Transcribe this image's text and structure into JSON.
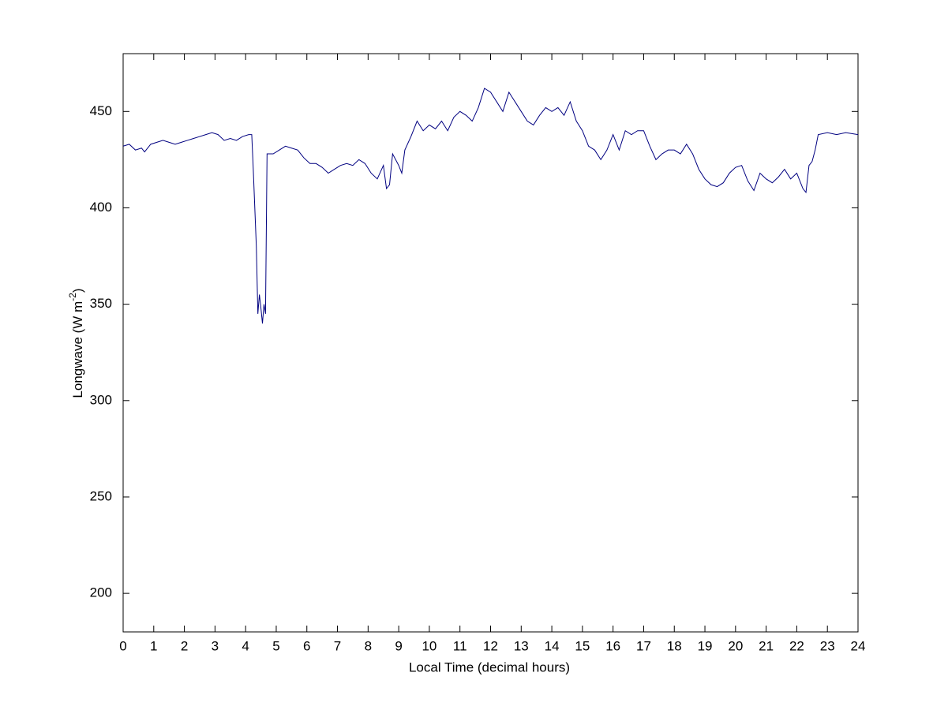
{
  "chart_data": {
    "type": "line",
    "xlabel": "Local Time (decimal hours)",
    "ylabel": "Longwave (W m",
    "ylabel_sup": "-2",
    "ylabel_end": ")",
    "xlim": [
      0,
      24
    ],
    "xticks": [
      0,
      1,
      2,
      3,
      4,
      5,
      6,
      7,
      8,
      9,
      10,
      11,
      12,
      13,
      14,
      15,
      16,
      17,
      18,
      19,
      20,
      21,
      22,
      23,
      24
    ],
    "ylim": [
      180,
      480
    ],
    "yticks": [
      200,
      250,
      300,
      350,
      400,
      450
    ],
    "grid": false,
    "series": [
      {
        "color": "#000080",
        "x": [
          0,
          0.2,
          0.4,
          0.6,
          0.7,
          0.9,
          1.1,
          1.3,
          1.5,
          1.7,
          1.9,
          2.1,
          2.3,
          2.5,
          2.7,
          2.9,
          3.1,
          3.3,
          3.5,
          3.7,
          3.9,
          4.1,
          4.2,
          4.25,
          4.35,
          4.4,
          4.45,
          4.5,
          4.55,
          4.6,
          4.65,
          4.7,
          4.9,
          5.1,
          5.3,
          5.5,
          5.7,
          5.9,
          6.1,
          6.3,
          6.5,
          6.7,
          6.9,
          7.1,
          7.3,
          7.5,
          7.7,
          7.9,
          8.1,
          8.3,
          8.5,
          8.6,
          8.7,
          8.8,
          9.0,
          9.1,
          9.2,
          9.4,
          9.6,
          9.8,
          10.0,
          10.2,
          10.4,
          10.6,
          10.8,
          11.0,
          11.2,
          11.4,
          11.6,
          11.8,
          12.0,
          12.2,
          12.4,
          12.6,
          12.8,
          13.0,
          13.2,
          13.4,
          13.6,
          13.8,
          14.0,
          14.2,
          14.4,
          14.6,
          14.8,
          15.0,
          15.2,
          15.4,
          15.6,
          15.8,
          16.0,
          16.2,
          16.4,
          16.6,
          16.8,
          17.0,
          17.2,
          17.4,
          17.6,
          17.8,
          18.0,
          18.2,
          18.4,
          18.6,
          18.8,
          19.0,
          19.2,
          19.4,
          19.6,
          19.8,
          20.0,
          20.2,
          20.4,
          20.6,
          20.8,
          21.0,
          21.2,
          21.4,
          21.6,
          21.8,
          22.0,
          22.2,
          22.3,
          22.4,
          22.5,
          22.6,
          22.7,
          23.0,
          23.3,
          23.6,
          24.0
        ],
        "values": [
          432,
          433,
          430,
          431,
          429,
          433,
          434,
          435,
          434,
          433,
          434,
          435,
          436,
          437,
          438,
          439,
          438,
          435,
          436,
          435,
          437,
          438,
          438,
          420,
          380,
          345,
          355,
          348,
          340,
          350,
          345,
          428,
          428,
          430,
          432,
          431,
          430,
          426,
          423,
          423,
          421,
          418,
          420,
          422,
          423,
          422,
          425,
          423,
          418,
          415,
          422,
          410,
          412,
          428,
          422,
          418,
          430,
          437,
          445,
          440,
          443,
          441,
          445,
          440,
          447,
          450,
          448,
          445,
          452,
          462,
          460,
          455,
          450,
          460,
          455,
          450,
          445,
          443,
          448,
          452,
          450,
          452,
          448,
          455,
          445,
          440,
          432,
          430,
          425,
          430,
          438,
          430,
          440,
          438,
          440,
          440,
          432,
          425,
          428,
          430,
          430,
          428,
          433,
          428,
          420,
          415,
          412,
          411,
          413,
          418,
          421,
          422,
          414,
          409,
          418,
          415,
          413,
          416,
          420,
          415,
          418,
          410,
          408,
          422,
          424,
          430,
          438,
          439,
          438,
          439,
          438
        ]
      }
    ]
  }
}
